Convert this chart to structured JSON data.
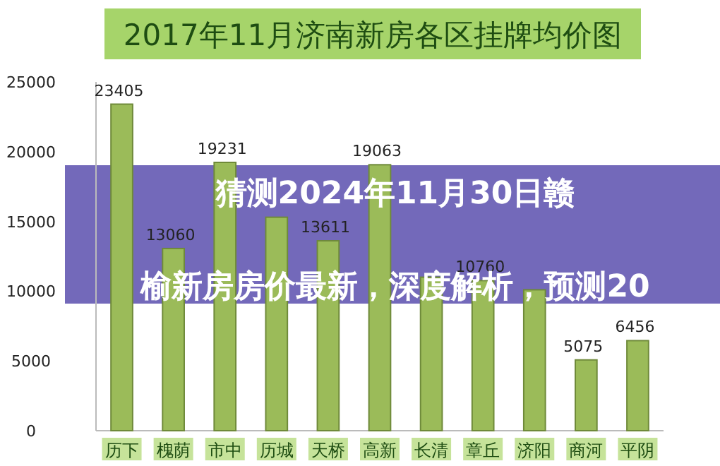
{
  "chart_data": {
    "type": "bar",
    "title": "2017年11月济南新房各区挂牌均价图",
    "annotations": [
      "猜测2024年11月30日赣榆新房房价最新，深度解析，预测20"
    ],
    "categories": [
      "历下",
      "槐荫",
      "市中",
      "历城",
      "天桥",
      "高新",
      "长清",
      "章丘",
      "济阳",
      "商河",
      "平阴"
    ],
    "values": [
      23405,
      13060,
      19231,
      15300,
      13611,
      19063,
      11000,
      10760,
      10100,
      5075,
      6456
    ],
    "value_labels": [
      "23405",
      "13060",
      "19231",
      null,
      "13611",
      "19063",
      null,
      "10760",
      null,
      "5075",
      "6456"
    ],
    "color": "#9bbb59",
    "ylim": [
      0,
      25000
    ],
    "yticks": [
      0,
      5000,
      10000,
      15000,
      20000,
      25000
    ]
  }
}
